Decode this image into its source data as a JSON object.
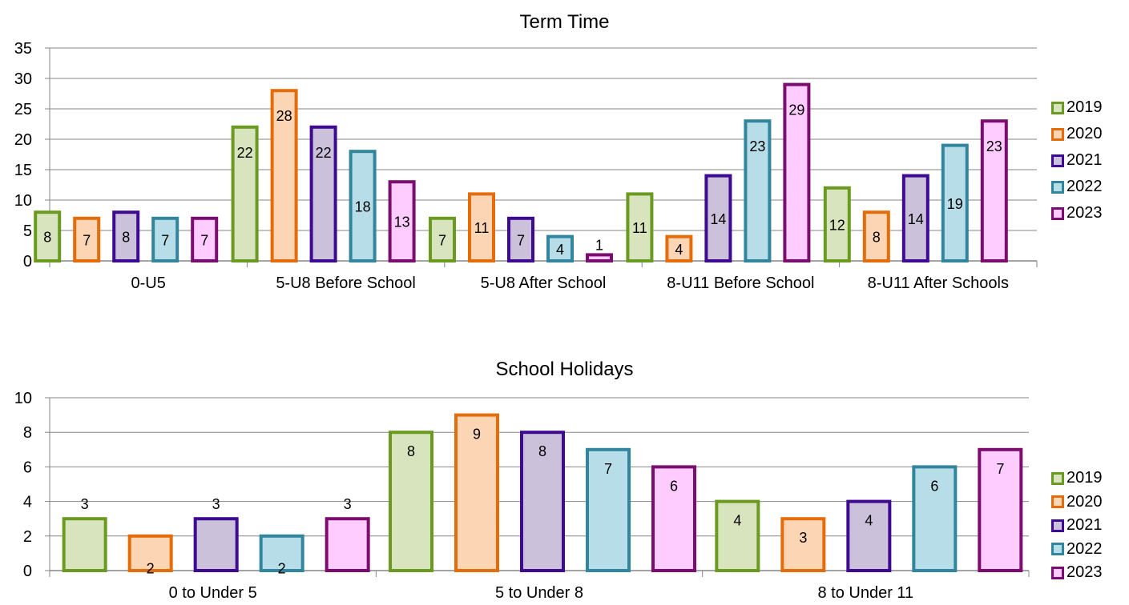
{
  "colors": {
    "2019": {
      "stroke": "#6a9a1f",
      "fill": "#d7e4bd"
    },
    "2020": {
      "stroke": "#e46c0a",
      "fill": "#fcd5b5"
    },
    "2021": {
      "stroke": "#3d0a91",
      "fill": "#ccc1da"
    },
    "2022": {
      "stroke": "#31859c",
      "fill": "#b7dee8"
    },
    "2023": {
      "stroke": "#7b0d6f",
      "fill": "#ffccff"
    },
    "axis": "#868686",
    "grid": "#868686"
  },
  "chart_data": [
    {
      "type": "bar",
      "title": "Term Time",
      "categories": [
        "0-U5",
        "5-U8 Before School",
        "5-U8 After School",
        "8-U11 Before School",
        "8-U11 After Schools"
      ],
      "ylim": [
        0,
        35
      ],
      "yticks": [
        "0",
        "5",
        "10",
        "15",
        "20",
        "25",
        "30",
        "35"
      ],
      "grid": true,
      "legend": "right",
      "series": [
        {
          "name": "2019",
          "values": [
            8,
            22,
            7,
            11,
            12
          ]
        },
        {
          "name": "2020",
          "values": [
            7,
            28,
            11,
            4,
            8
          ]
        },
        {
          "name": "2021",
          "values": [
            8,
            22,
            7,
            14,
            14
          ]
        },
        {
          "name": "2022",
          "values": [
            7,
            18,
            4,
            23,
            19
          ]
        },
        {
          "name": "2023",
          "values": [
            7,
            13,
            1,
            29,
            23
          ]
        }
      ]
    },
    {
      "type": "bar",
      "title": "School Holidays",
      "categories": [
        "0 to Under 5",
        "5 to Under 8",
        "8 to Under 11"
      ],
      "ylim": [
        0,
        10
      ],
      "yticks": [
        "0",
        "2",
        "4",
        "6",
        "8",
        "10"
      ],
      "grid": true,
      "legend": "right",
      "series": [
        {
          "name": "2019",
          "values": [
            3,
            8,
            4
          ]
        },
        {
          "name": "2020",
          "values": [
            2,
            9,
            3
          ]
        },
        {
          "name": "2021",
          "values": [
            3,
            8,
            4
          ]
        },
        {
          "name": "2022",
          "values": [
            2,
            7,
            6
          ]
        },
        {
          "name": "2023",
          "values": [
            3,
            6,
            7
          ]
        }
      ]
    }
  ]
}
